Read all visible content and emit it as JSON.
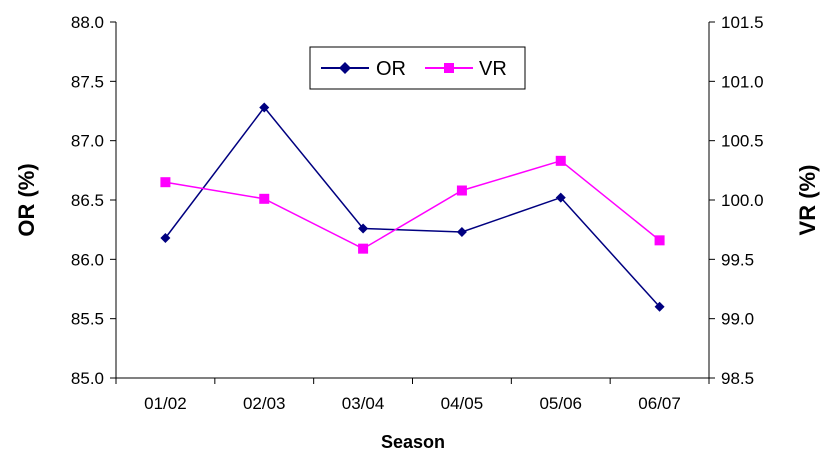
{
  "chart_data": {
    "type": "line",
    "categories": [
      "01/02",
      "02/03",
      "03/04",
      "04/05",
      "05/06",
      "06/07"
    ],
    "xlabel": "Season",
    "ylabel_left": "OR (%)",
    "ylabel_right": "VR (%)",
    "ylim_left": [
      85.0,
      88.0
    ],
    "ylim_right": [
      98.5,
      101.5
    ],
    "yticks_left": [
      "85.0",
      "85.5",
      "86.0",
      "86.5",
      "87.0",
      "87.5",
      "88.0"
    ],
    "yticks_right": [
      "98.5",
      "99.0",
      "99.5",
      "100.0",
      "100.5",
      "101.0",
      "101.5"
    ],
    "grid": false,
    "legend_position": "top-center",
    "series": [
      {
        "name": "OR",
        "axis": "left",
        "color": "#000080",
        "marker": "diamond",
        "values": [
          86.18,
          87.28,
          86.26,
          86.23,
          86.52,
          85.6
        ]
      },
      {
        "name": "VR",
        "axis": "right",
        "color": "#FF00FF",
        "marker": "square",
        "values": [
          100.15,
          100.01,
          99.59,
          100.08,
          100.33,
          99.66
        ]
      }
    ]
  }
}
